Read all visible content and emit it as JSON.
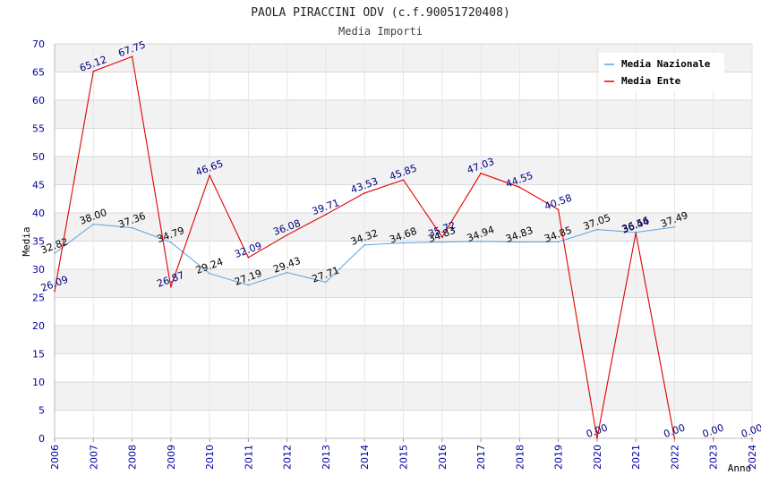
{
  "chart_data": {
    "type": "line",
    "title": "PAOLA PIRACCINI ODV (c.f.90051720408)",
    "subtitle": "Media Importi",
    "xlabel": "Anno",
    "ylabel": "Media",
    "ylim": [
      0,
      70
    ],
    "y_ticks": [
      "0",
      "5",
      "10",
      "15",
      "20",
      "25",
      "30",
      "35",
      "40",
      "45",
      "50",
      "55",
      "60",
      "65",
      "70"
    ],
    "categories": [
      "2006",
      "2007",
      "2008",
      "2009",
      "2010",
      "2011",
      "2012",
      "2013",
      "2014",
      "2015",
      "2016",
      "2017",
      "2018",
      "2019",
      "2020",
      "2021",
      "2022",
      "2023",
      "2024"
    ],
    "legend_position": "top-right",
    "series": [
      {
        "name": "Media Nazionale",
        "color": "#5ba3e0",
        "label_color": "#000000",
        "values": [
          32.82,
          38.0,
          37.36,
          34.79,
          29.24,
          27.19,
          29.43,
          27.71,
          34.32,
          34.68,
          34.83,
          34.94,
          34.83,
          34.85,
          37.05,
          36.56,
          37.49,
          null,
          null
        ],
        "labels": [
          "32.82",
          "38.00",
          "37.36",
          "34.79",
          "29.24",
          "27.19",
          "29.43",
          "27.71",
          "34.32",
          "34.68",
          "34.83",
          "34.94",
          "34.83",
          "34.85",
          "37.05",
          "36.56",
          "37.49",
          null,
          null
        ]
      },
      {
        "name": "Media Ente",
        "color": "#e00000",
        "label_color": "#00007f",
        "values": [
          26.09,
          65.12,
          67.75,
          26.87,
          46.65,
          32.09,
          36.08,
          39.71,
          43.53,
          45.85,
          35.72,
          47.03,
          44.55,
          40.58,
          0.0,
          36.44,
          0.0,
          0.0,
          0.0
        ],
        "labels": [
          "26.09",
          "65.12",
          "67.75",
          "26.87",
          "46.65",
          "32.09",
          "36.08",
          "39.71",
          "43.53",
          "45.85",
          "35.72",
          "47.03",
          "44.55",
          "40.58",
          "0.00",
          "36.44",
          "0.00",
          "0.00",
          "0.00"
        ],
        "line_points": 17
      }
    ]
  },
  "colors": {
    "axis_text": "#0000a0",
    "band": "#f2f2f2",
    "grid": "#d8d8d8",
    "title": "#222222"
  }
}
